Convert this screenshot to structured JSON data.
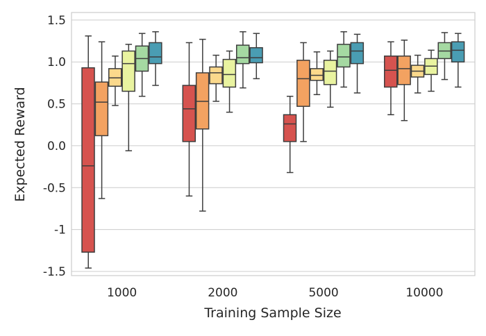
{
  "chart_data": {
    "type": "box",
    "title": "",
    "xlabel": "Training Sample Size",
    "ylabel": "Expected Reward",
    "categories": [
      "1000",
      "2000",
      "5000",
      "10000"
    ],
    "yticks": [
      1.5,
      1.0,
      0.5,
      0.0,
      -0.5,
      -1,
      -1.5
    ],
    "ytick_labels": [
      "1.5",
      "1.0",
      "0.5",
      "0.0",
      "-0.5",
      "-1",
      "-1.5"
    ],
    "ylim": [
      -1.55,
      1.59
    ],
    "grid": "horizontal",
    "legend": "none",
    "box_stat_order": [
      "min",
      "q1",
      "median",
      "q3",
      "max"
    ],
    "series": [
      {
        "color": "#d6534f",
        "boxes": [
          [
            -1.46,
            -1.27,
            -0.24,
            0.93,
            1.31
          ],
          [
            -0.6,
            0.05,
            0.44,
            0.72,
            1.23
          ],
          [
            -0.32,
            0.05,
            0.26,
            0.37,
            0.59
          ],
          [
            0.37,
            0.7,
            0.9,
            1.07,
            1.24
          ]
        ]
      },
      {
        "color": "#f3a261",
        "boxes": [
          [
            -0.63,
            0.12,
            0.52,
            0.76,
            1.24
          ],
          [
            -0.78,
            0.2,
            0.53,
            0.87,
            1.27
          ],
          [
            0.05,
            0.47,
            0.8,
            1.02,
            1.23
          ],
          [
            0.3,
            0.73,
            0.92,
            1.07,
            1.26
          ]
        ]
      },
      {
        "color": "#fbd98c",
        "boxes": [
          [
            0.48,
            0.71,
            0.81,
            0.92,
            1.07
          ],
          [
            0.53,
            0.74,
            0.87,
            0.94,
            1.08
          ],
          [
            0.61,
            0.78,
            0.84,
            0.92,
            1.12
          ],
          [
            0.63,
            0.82,
            0.89,
            0.96,
            1.08
          ]
        ]
      },
      {
        "color": "#e9f3a0",
        "boxes": [
          [
            -0.06,
            0.65,
            0.98,
            1.13,
            1.21
          ],
          [
            0.4,
            0.7,
            0.85,
            1.03,
            1.13
          ],
          [
            0.46,
            0.73,
            0.89,
            1.02,
            1.13
          ],
          [
            0.65,
            0.85,
            0.95,
            1.04,
            1.14
          ]
        ]
      },
      {
        "color": "#a5d9a2",
        "boxes": [
          [
            0.59,
            0.89,
            1.04,
            1.19,
            1.34
          ],
          [
            0.69,
            0.98,
            1.05,
            1.2,
            1.36
          ],
          [
            0.7,
            0.94,
            1.06,
            1.21,
            1.36
          ],
          [
            0.79,
            1.04,
            1.13,
            1.23,
            1.35
          ]
        ]
      },
      {
        "color": "#4a9db3",
        "boxes": [
          [
            0.72,
            0.98,
            1.06,
            1.23,
            1.36
          ],
          [
            0.8,
            0.99,
            1.05,
            1.17,
            1.34
          ],
          [
            0.63,
            0.98,
            1.13,
            1.23,
            1.33
          ],
          [
            0.7,
            1.0,
            1.14,
            1.24,
            1.34
          ]
        ]
      }
    ]
  }
}
